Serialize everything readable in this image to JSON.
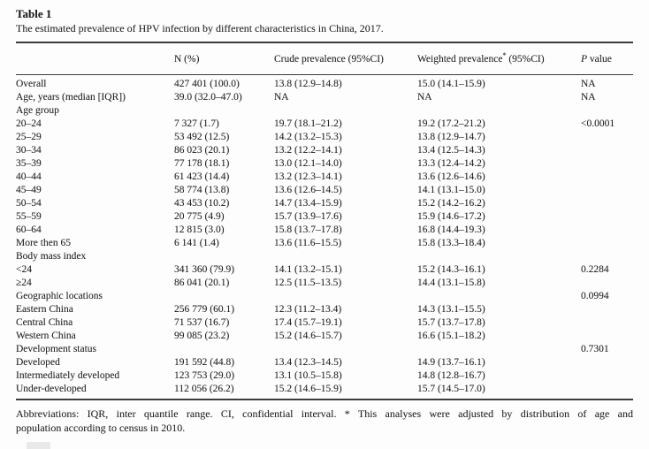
{
  "table": {
    "title": "Table 1",
    "caption": "The estimated prevalence of HPV infection by different characteristics in China, 2017.",
    "columns": {
      "label": "",
      "n": "N (%)",
      "crude": "Crude prevalence (95%CI)",
      "weighted_main": "Weighted prevalence",
      "weighted_sup": "*",
      "weighted_rest": " (95%CI)",
      "p_italic": "P",
      "p_rest": " value"
    },
    "rows": [
      {
        "label": "Overall",
        "n": "427 401 (100.0)",
        "crude": "13.8 (12.9–14.8)",
        "weighted": "15.0 (14.1–15.9)",
        "p": "NA"
      },
      {
        "label": "Age, years (median [IQR])",
        "n": "39.0 (32.0–47.0)",
        "crude": "NA",
        "weighted": "NA",
        "p": "NA"
      },
      {
        "label": "Age group",
        "n": "",
        "crude": "",
        "weighted": "",
        "p": ""
      },
      {
        "label": "20–24",
        "n": "7 327 (1.7)",
        "crude": "19.7 (18.1–21.2)",
        "weighted": "19.2 (17.2–21.2)",
        "p": "<0.0001"
      },
      {
        "label": "25–29",
        "n": "53 492 (12.5)",
        "crude": "14.2 (13.2–15.3)",
        "weighted": "13.8 (12.9–14.7)",
        "p": ""
      },
      {
        "label": "30–34",
        "n": "86 023 (20.1)",
        "crude": "13.2 (12.2–14.1)",
        "weighted": "13.4 (12.5–14.3)",
        "p": ""
      },
      {
        "label": "35–39",
        "n": "77 178 (18.1)",
        "crude": "13.0 (12.1–14.0)",
        "weighted": "13.3 (12.4–14.2)",
        "p": ""
      },
      {
        "label": "40–44",
        "n": "61 423 (14.4)",
        "crude": "13.2 (12.3–14.1)",
        "weighted": "13.6 (12.6–14.6)",
        "p": ""
      },
      {
        "label": "45–49",
        "n": "58 774 (13.8)",
        "crude": "13.6 (12.6–14.5)",
        "weighted": "14.1 (13.1–15.0)",
        "p": ""
      },
      {
        "label": "50–54",
        "n": "43 453 (10.2)",
        "crude": "14.7 (13.4–15.9)",
        "weighted": "15.2 (14.2–16.2)",
        "p": ""
      },
      {
        "label": "55–59",
        "n": "20 775 (4.9)",
        "crude": "15.7 (13.9–17.6)",
        "weighted": "15.9 (14.6–17.2)",
        "p": ""
      },
      {
        "label": "60–64",
        "n": "12 815 (3.0)",
        "crude": "15.8 (13.7–17.8)",
        "weighted": "16.8 (14.4–19.3)",
        "p": ""
      },
      {
        "label": "More then 65",
        "n": "6 141 (1.4)",
        "crude": "13.6 (11.6–15.5)",
        "weighted": "15.8 (13.3–18.4)",
        "p": ""
      },
      {
        "label": "Body mass index",
        "n": "",
        "crude": "",
        "weighted": "",
        "p": ""
      },
      {
        "label": "<24",
        "n": "341 360 (79.9)",
        "crude": "14.1 (13.2–15.1)",
        "weighted": "15.2 (14.3–16.1)",
        "p": "0.2284"
      },
      {
        "label": "≥24",
        "n": "86 041 (20.1)",
        "crude": "12.5 (11.5–13.5)",
        "weighted": "14.4 (13.1–15.8)",
        "p": ""
      },
      {
        "label": "Geographic locations",
        "n": "",
        "crude": "",
        "weighted": "",
        "p": "0.0994"
      },
      {
        "label": "Eastern China",
        "n": "256 779 (60.1)",
        "crude": "12.3 (11.2–13.4)",
        "weighted": "14.3 (13.1–15.5)",
        "p": ""
      },
      {
        "label": "Central China",
        "n": "71 537 (16.7)",
        "crude": "17.4 (15.7–19.1)",
        "weighted": "15.7 (13.7–17.8)",
        "p": ""
      },
      {
        "label": "Western China",
        "n": "99 085 (23.2)",
        "crude": "15.2 (14.6–15.7)",
        "weighted": "16.6 (15.1–18.2)",
        "p": ""
      },
      {
        "label": "Development status",
        "n": "",
        "crude": "",
        "weighted": "",
        "p": "0.7301"
      },
      {
        "label": "Developed",
        "n": "191 592 (44.8)",
        "crude": "13.4 (12.3–14.5)",
        "weighted": "14.9 (13.7–16.1)",
        "p": ""
      },
      {
        "label": "Intermediately developed",
        "n": "123 753 (29.0)",
        "crude": "13.1 (10.5–15.8)",
        "weighted": "14.8 (12.8–16.7)",
        "p": ""
      },
      {
        "label": "Under-developed",
        "n": "112 056 (26.2)",
        "crude": "15.2 (14.6–15.9)",
        "weighted": "15.7 (14.5–17.0)",
        "p": ""
      }
    ],
    "footnote_line1": "Abbreviations: IQR, inter quantile range. CI, confidential interval. * This analyses were adjusted by distribution of age and",
    "footnote_line2": "population according to census in 2010."
  }
}
